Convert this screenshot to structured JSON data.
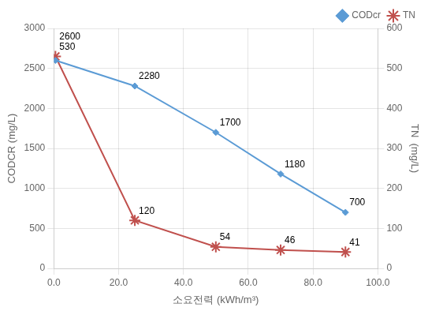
{
  "chart_data": {
    "type": "line",
    "x_label": "소요전력 (kWh/m³)",
    "y_label": "CODCR (mg/L)",
    "y2_label": "TN  (mg/L)",
    "x": [
      0.5,
      25,
      50,
      70,
      90
    ],
    "series": [
      {
        "name": "CODcr",
        "color": "#5B9BD5",
        "marker": "diamond",
        "values": [
          2600,
          2280,
          1700,
          1180,
          700
        ]
      },
      {
        "name": "TN",
        "color": "#C0504D",
        "marker": "star",
        "axis": "y2",
        "values": [
          530,
          120,
          54,
          46,
          41
        ]
      }
    ],
    "xlim": [
      0,
      100
    ],
    "xticks": [
      {
        "value": 0,
        "label": "0.0"
      },
      {
        "value": 20,
        "label": "20.0"
      },
      {
        "value": 40,
        "label": "40.0"
      },
      {
        "value": 60,
        "label": "60.0"
      },
      {
        "value": 80,
        "label": "80.0"
      },
      {
        "value": 100,
        "label": "100.0"
      }
    ],
    "ylim": [
      0,
      3000
    ],
    "yticks": [
      0,
      500,
      1000,
      1500,
      2000,
      2500,
      3000
    ],
    "y2lim": [
      0,
      600
    ],
    "y2ticks": [
      0,
      100,
      200,
      300,
      400,
      500,
      600
    ],
    "grid": true,
    "legend": "upper right",
    "data_labels": true
  }
}
